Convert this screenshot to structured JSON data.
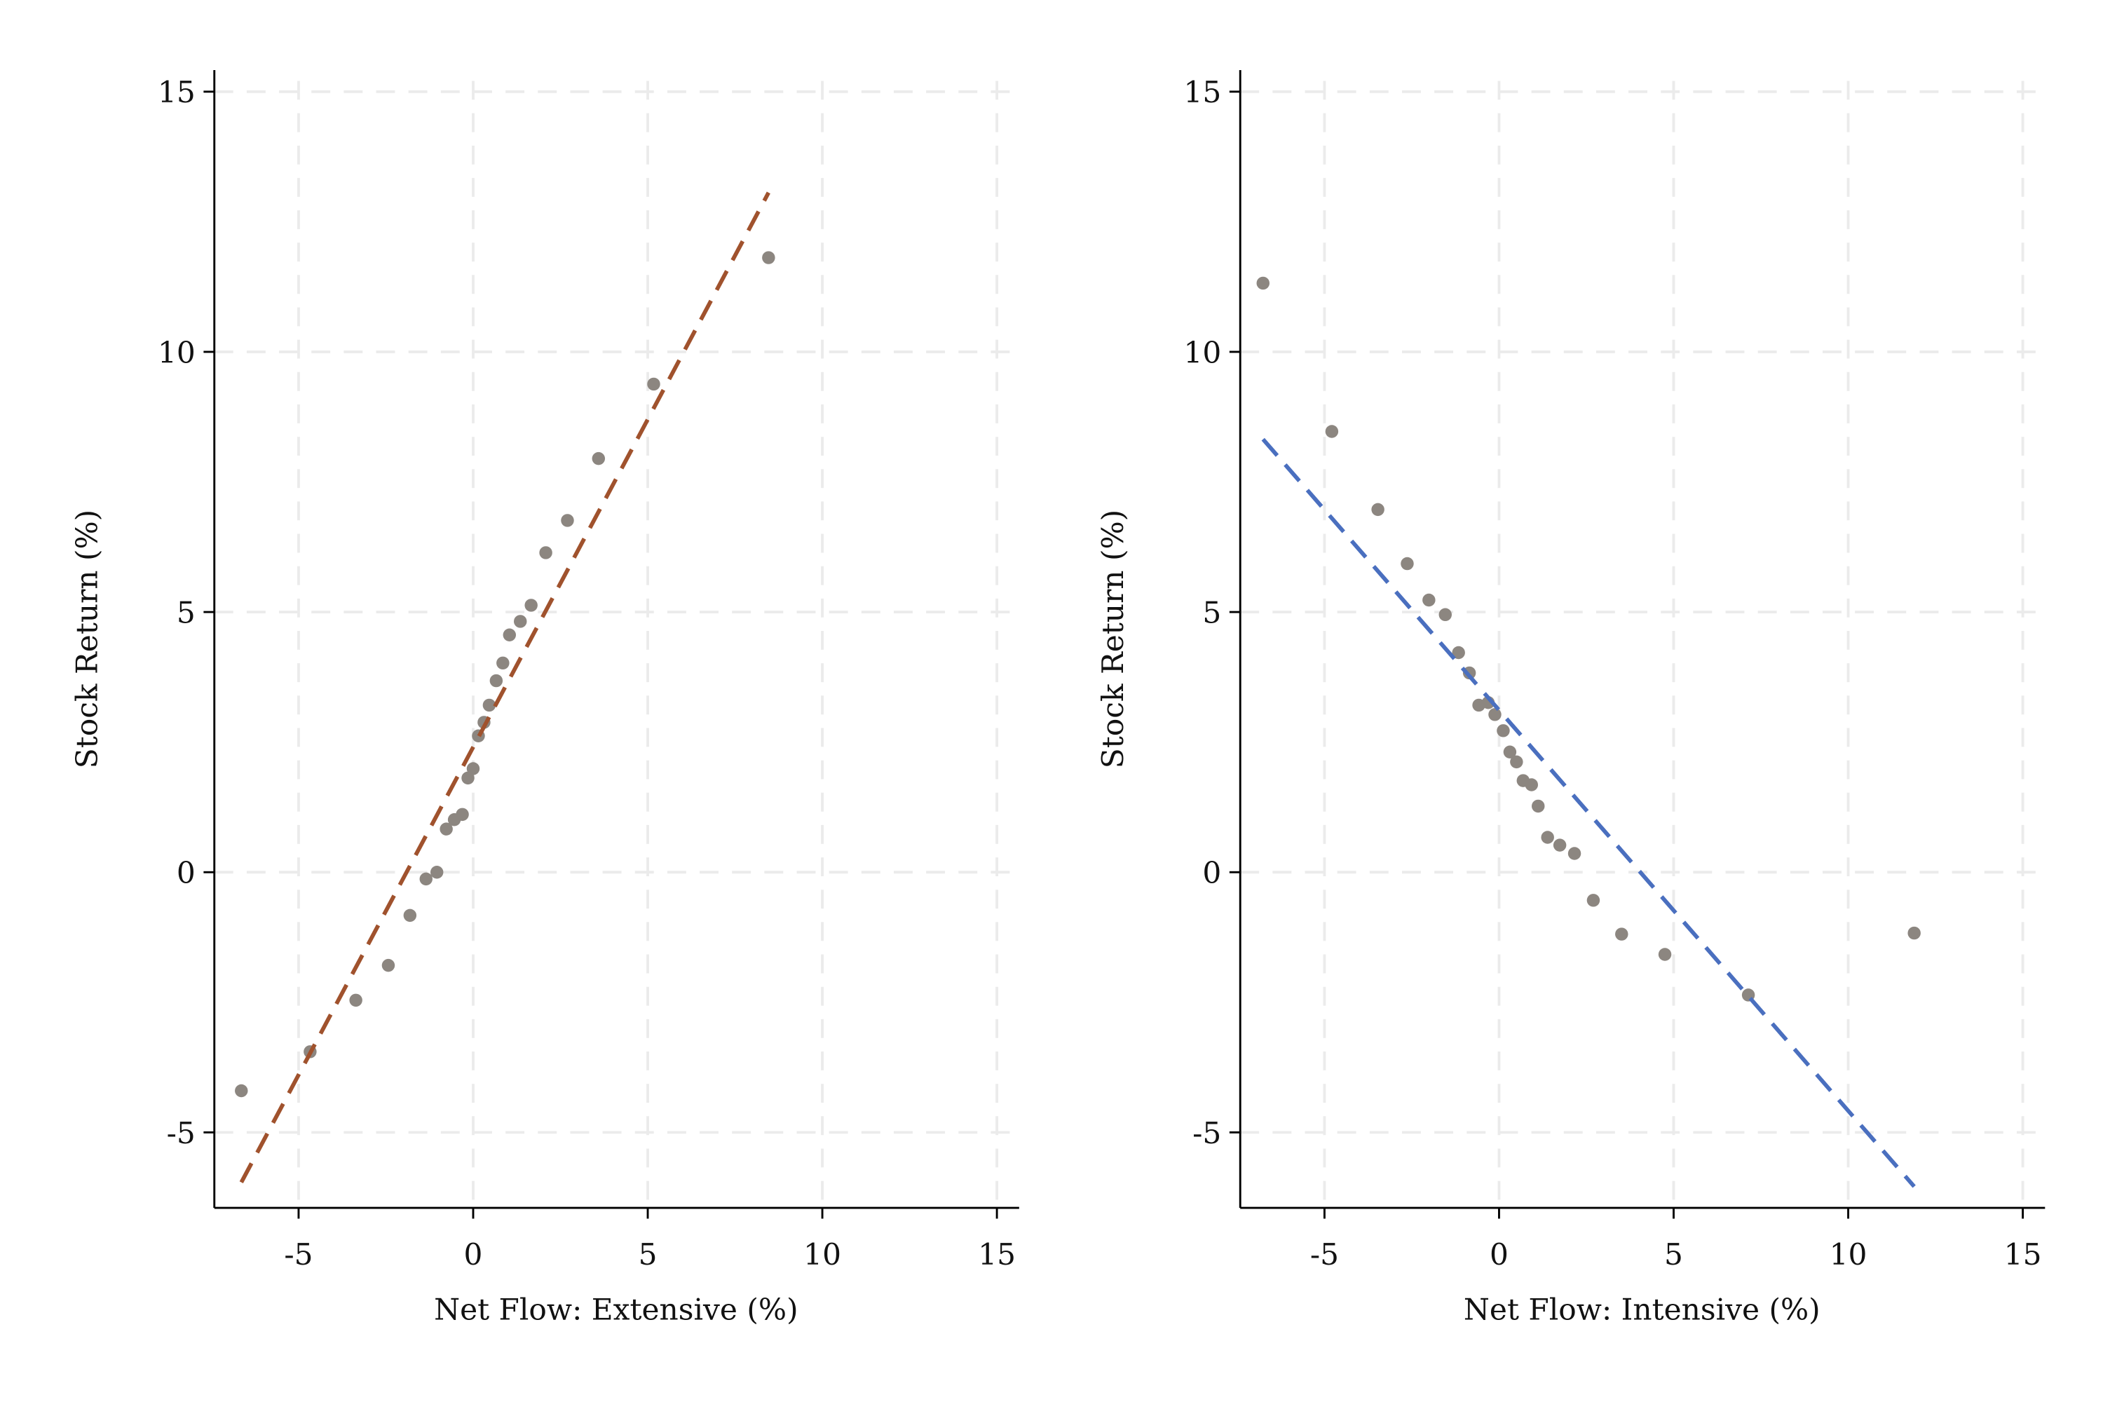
{
  "chart_data": [
    {
      "type": "scatter",
      "xlabel": "Net Flow: Extensive (%)",
      "ylabel": "Stock Return (%)",
      "xlim": [
        -7.5,
        15.6
      ],
      "ylim": [
        -6.4,
        15.4
      ],
      "xticks": [
        -5,
        0,
        5,
        10,
        15
      ],
      "yticks": [
        -5,
        0,
        5,
        10,
        15
      ],
      "xtick_labels": [
        "-5",
        "0",
        "5",
        "10",
        "15"
      ],
      "ytick_labels": [
        "-5",
        "0",
        "5",
        "10",
        "15"
      ],
      "grid": true,
      "marker_color": "#8c8680",
      "points": [
        [
          -6.64,
          -4.2
        ],
        [
          -4.67,
          -3.45
        ],
        [
          -3.36,
          -2.46
        ],
        [
          -2.43,
          -1.79
        ],
        [
          -1.81,
          -0.83
        ],
        [
          -1.35,
          -0.13
        ],
        [
          -1.04,
          0.0
        ],
        [
          -0.77,
          0.83
        ],
        [
          -0.54,
          1.01
        ],
        [
          -0.31,
          1.11
        ],
        [
          -0.15,
          1.81
        ],
        [
          0.0,
          1.99
        ],
        [
          0.15,
          2.62
        ],
        [
          0.31,
          2.88
        ],
        [
          0.46,
          3.21
        ],
        [
          0.66,
          3.68
        ],
        [
          0.85,
          4.02
        ],
        [
          1.04,
          4.56
        ],
        [
          1.35,
          4.82
        ],
        [
          1.66,
          5.13
        ],
        [
          2.08,
          6.14
        ],
        [
          2.7,
          6.76
        ],
        [
          3.59,
          7.95
        ],
        [
          5.17,
          9.38
        ],
        [
          8.46,
          11.81
        ]
      ],
      "fit_line": {
        "x": [
          -6.64,
          8.46
        ],
        "y": [
          -5.96,
          13.06
        ],
        "color": "#a0522d",
        "style": "dashed"
      }
    },
    {
      "type": "scatter",
      "xlabel": "Net Flow: Intensive (%)",
      "ylabel": "Stock Return (%)",
      "xlim": [
        -7.5,
        15.6
      ],
      "ylim": [
        -6.4,
        15.4
      ],
      "xticks": [
        -5,
        0,
        5,
        10,
        15
      ],
      "yticks": [
        -5,
        0,
        5,
        10,
        15
      ],
      "xtick_labels": [
        "-5",
        "0",
        "5",
        "10",
        "15"
      ],
      "ytick_labels": [
        "-5",
        "0",
        "5",
        "10",
        "15"
      ],
      "grid": true,
      "marker_color": "#8c8680",
      "points": [
        [
          -6.76,
          11.32
        ],
        [
          -4.79,
          8.47
        ],
        [
          -3.47,
          6.97
        ],
        [
          -2.63,
          5.93
        ],
        [
          -2.01,
          5.23
        ],
        [
          -1.54,
          4.95
        ],
        [
          -1.16,
          4.22
        ],
        [
          -0.85,
          3.83
        ],
        [
          -0.58,
          3.21
        ],
        [
          -0.31,
          3.26
        ],
        [
          -0.12,
          3.03
        ],
        [
          0.12,
          2.72
        ],
        [
          0.31,
          2.31
        ],
        [
          0.5,
          2.12
        ],
        [
          0.69,
          1.76
        ],
        [
          0.93,
          1.68
        ],
        [
          1.12,
          1.27
        ],
        [
          1.39,
          0.67
        ],
        [
          1.74,
          0.52
        ],
        [
          2.16,
          0.36
        ],
        [
          2.7,
          -0.54
        ],
        [
          3.51,
          -1.19
        ],
        [
          4.75,
          -1.58
        ],
        [
          7.14,
          -2.36
        ],
        [
          11.89,
          -1.17
        ]
      ],
      "fit_line": {
        "x": [
          -6.76,
          11.89
        ],
        "y": [
          8.32,
          -6.04
        ],
        "color": "#4a6fbf",
        "style": "dashed"
      }
    }
  ]
}
